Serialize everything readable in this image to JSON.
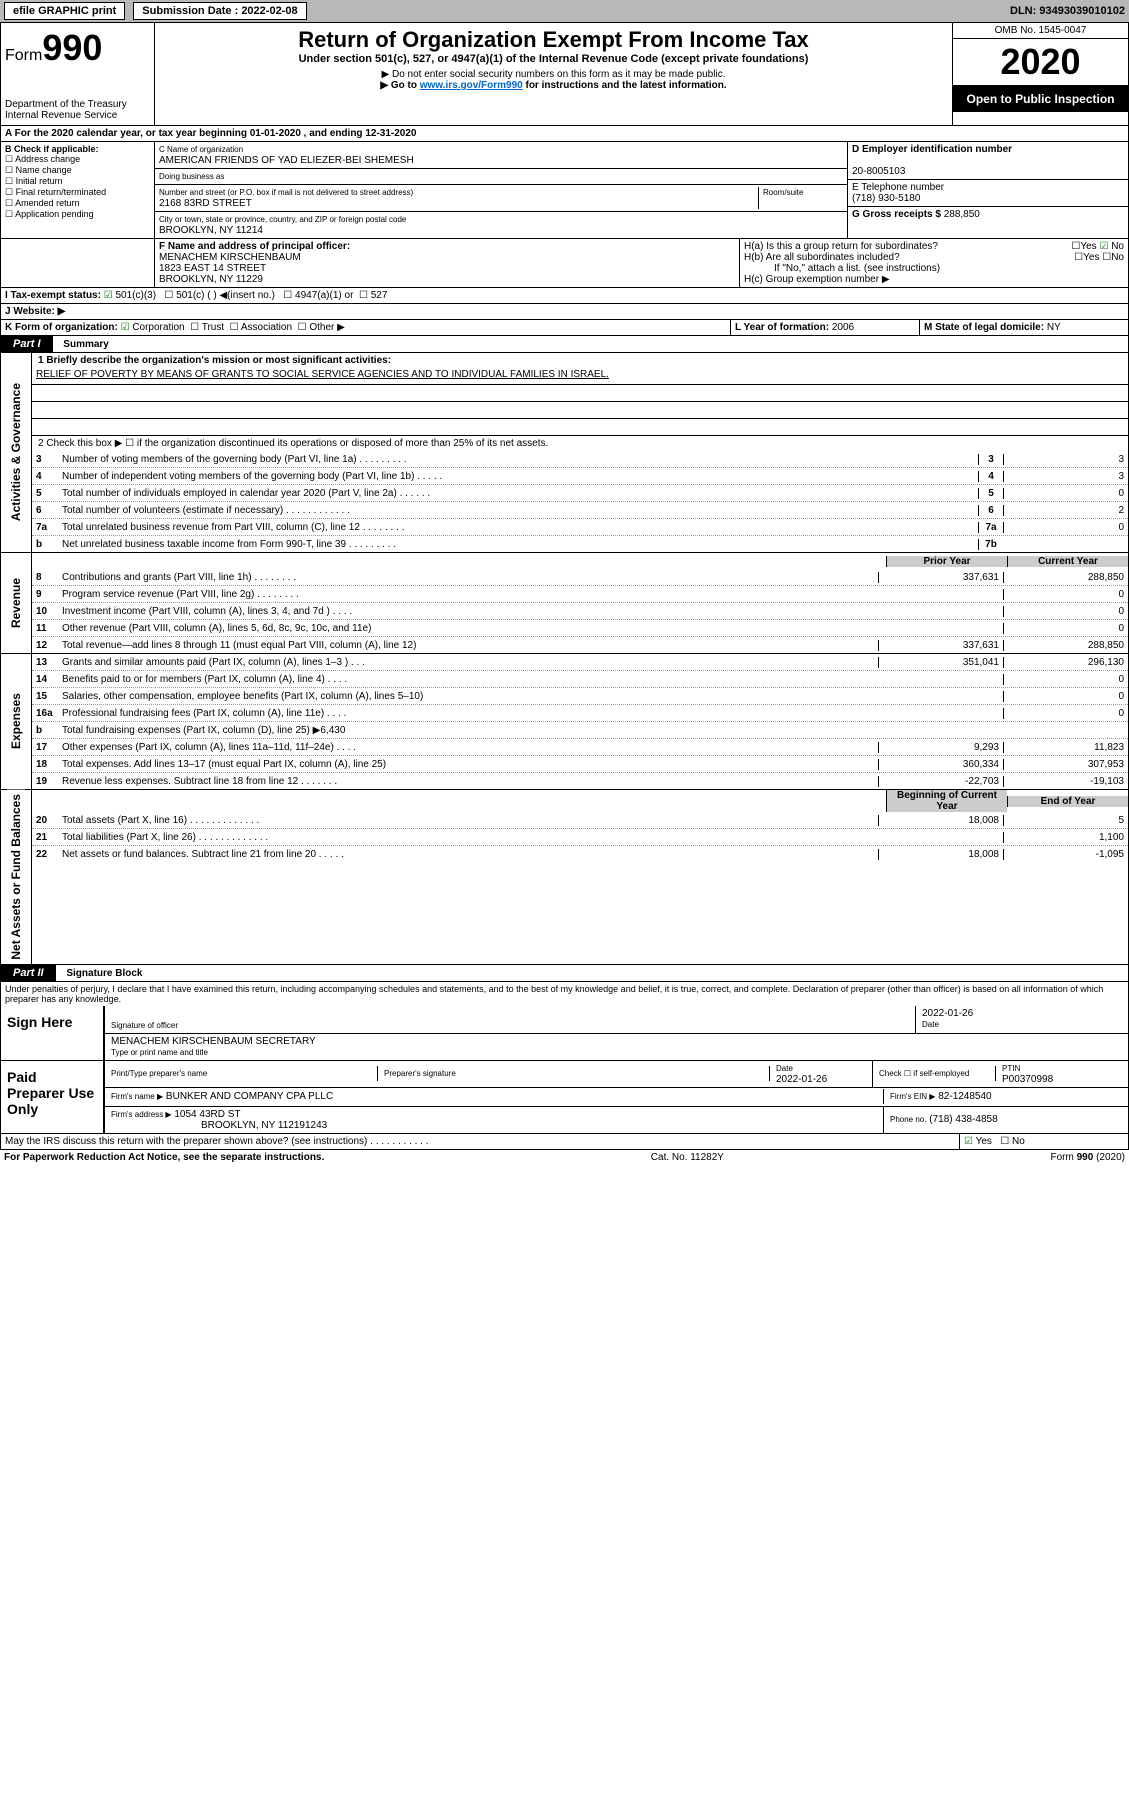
{
  "topbar": {
    "efile": "efile GRAPHIC print",
    "sub_label": "Submission Date : 2022-02-08",
    "dln": "DLN: 93493039010102"
  },
  "header": {
    "form_prefix": "Form",
    "form_num": "990",
    "dept": "Department of the Treasury\nInternal Revenue Service",
    "title": "Return of Organization Exempt From Income Tax",
    "subtitle": "Under section 501(c), 527, or 4947(a)(1) of the Internal Revenue Code (except private foundations)",
    "note1": "▶ Do not enter social security numbers on this form as it may be made public.",
    "note2_pre": "▶ Go to ",
    "note2_link": "www.irs.gov/Form990",
    "note2_post": " for instructions and the latest information.",
    "omb": "OMB No. 1545-0047",
    "year": "2020",
    "open": "Open to Public Inspection"
  },
  "line_a": "A For the 2020 calendar year, or tax year beginning 01-01-2020   , and ending 12-31-2020",
  "b": {
    "label": "B Check if applicable:",
    "items": [
      "Address change",
      "Name change",
      "Initial return",
      "Final return/terminated",
      "Amended return",
      "Application pending"
    ]
  },
  "c": {
    "label": "C Name of organization",
    "name": "AMERICAN FRIENDS OF YAD ELIEZER-BEI SHEMESH",
    "dba_label": "Doing business as",
    "addr_label": "Number and street (or P.O. box if mail is not delivered to street address)",
    "room_label": "Room/suite",
    "addr": "2168 83RD STREET",
    "city_label": "City or town, state or province, country, and ZIP or foreign postal code",
    "city": "BROOKLYN, NY  11214"
  },
  "d": {
    "label": "D Employer identification number",
    "val": "20-8005103"
  },
  "e": {
    "label": "E Telephone number",
    "val": "(718) 930-5180"
  },
  "g": {
    "label": "G Gross receipts $",
    "val": "288,850"
  },
  "f": {
    "label": "F Name and address of principal officer:",
    "name": "MENACHEM KIRSCHENBAUM",
    "addr1": "1823 EAST 14 STREET",
    "addr2": "BROOKLYN, NY  11229"
  },
  "h": {
    "a": "H(a)  Is this a group return for subordinates?",
    "a_yes": "Yes",
    "a_no": "No",
    "b": "H(b)  Are all subordinates included?",
    "b_yes": "Yes",
    "b_no": "No",
    "note": "If \"No,\" attach a list. (see instructions)",
    "c": "H(c)  Group exemption number ▶"
  },
  "i": {
    "label": "I   Tax-exempt status:",
    "o1": "501(c)(3)",
    "o2": "501(c) (  ) ◀(insert no.)",
    "o3": "4947(a)(1) or",
    "o4": "527"
  },
  "j": {
    "label": "J   Website: ▶"
  },
  "k": {
    "label": "K Form of organization:",
    "o1": "Corporation",
    "o2": "Trust",
    "o3": "Association",
    "o4": "Other ▶"
  },
  "l": {
    "label": "L Year of formation:",
    "val": "2006"
  },
  "m": {
    "label": "M State of legal domicile:",
    "val": "NY"
  },
  "part1": {
    "bar": "Part I",
    "title": "Summary",
    "q1": "1  Briefly describe the organization's mission or most significant activities:",
    "mission": "RELIEF OF POVERTY BY MEANS OF GRANTS TO SOCIAL SERVICE AGENCIES AND TO INDIVIDUAL FAMILIES IN ISRAEL.",
    "q2": "2   Check this box ▶ ☐  if the organization discontinued its operations or disposed of more than 25% of its net assets.",
    "vlab_ag": "Activities & Governance",
    "vlab_rev": "Revenue",
    "vlab_exp": "Expenses",
    "vlab_net": "Net Assets or Fund Balances",
    "header_prior": "Prior Year",
    "header_curr": "Current Year",
    "header_boy": "Beginning of Current Year",
    "header_eoy": "End of Year"
  },
  "lines_gov": [
    {
      "n": "3",
      "d": "Number of voting members of the governing body (Part VI, line 1a)   .    .    .    .    .    .    .    .    .",
      "b": "3",
      "v": "3"
    },
    {
      "n": "4",
      "d": "Number of independent voting members of the governing body (Part VI, line 1b)  .    .    .    .    .",
      "b": "4",
      "v": "3"
    },
    {
      "n": "5",
      "d": "Total number of individuals employed in calendar year 2020 (Part V, line 2a)  .    .    .    .    .    .",
      "b": "5",
      "v": "0"
    },
    {
      "n": "6",
      "d": "Total number of volunteers (estimate if necessary)   .    .    .    .    .    .    .    .    .    .    .    .",
      "b": "6",
      "v": "2"
    },
    {
      "n": "7a",
      "d": "Total unrelated business revenue from Part VIII, column (C), line 12  .    .    .    .    .    .    .    .",
      "b": "7a",
      "v": "0"
    },
    {
      "n": "b",
      "d": "Net unrelated business taxable income from Form 990-T, line 39   .    .    .    .    .    .    .    .    .",
      "b": "7b",
      "v": ""
    }
  ],
  "lines_rev": [
    {
      "n": "8",
      "d": "Contributions and grants (Part VIII, line 1h)   .    .    .    .    .    .    .    .",
      "p": "337,631",
      "c": "288,850"
    },
    {
      "n": "9",
      "d": "Program service revenue (Part VIII, line 2g)  .    .    .    .    .    .    .    .",
      "p": "",
      "c": "0"
    },
    {
      "n": "10",
      "d": "Investment income (Part VIII, column (A), lines 3, 4, and 7d )  .    .    .    .",
      "p": "",
      "c": "0"
    },
    {
      "n": "11",
      "d": "Other revenue (Part VIII, column (A), lines 5, 6d, 8c, 9c, 10c, and 11e)",
      "p": "",
      "c": "0"
    },
    {
      "n": "12",
      "d": "Total revenue—add lines 8 through 11 (must equal Part VIII, column (A), line 12)",
      "p": "337,631",
      "c": "288,850"
    }
  ],
  "lines_exp": [
    {
      "n": "13",
      "d": "Grants and similar amounts paid (Part IX, column (A), lines 1–3 )  .    .    .",
      "p": "351,041",
      "c": "296,130"
    },
    {
      "n": "14",
      "d": "Benefits paid to or for members (Part IX, column (A), line 4)  .    .    .    .",
      "p": "",
      "c": "0"
    },
    {
      "n": "15",
      "d": "Salaries, other compensation, employee benefits (Part IX, column (A), lines 5–10)",
      "p": "",
      "c": "0"
    },
    {
      "n": "16a",
      "d": "Professional fundraising fees (Part IX, column (A), line 11e)  .    .    .    .",
      "p": "",
      "c": "0"
    },
    {
      "n": "b",
      "d": "Total fundraising expenses (Part IX, column (D), line 25) ▶6,430",
      "p": "—",
      "c": "—"
    },
    {
      "n": "17",
      "d": "Other expenses (Part IX, column (A), lines 11a–11d, 11f–24e)  .    .    .    .",
      "p": "9,293",
      "c": "11,823"
    },
    {
      "n": "18",
      "d": "Total expenses. Add lines 13–17 (must equal Part IX, column (A), line 25)",
      "p": "360,334",
      "c": "307,953"
    },
    {
      "n": "19",
      "d": "Revenue less expenses. Subtract line 18 from line 12  .    .    .    .    .    .    .",
      "p": "-22,703",
      "c": "-19,103"
    }
  ],
  "lines_net": [
    {
      "n": "20",
      "d": "Total assets (Part X, line 16)   .    .    .    .    .    .    .    .    .    .    .    .    .",
      "p": "18,008",
      "c": "5"
    },
    {
      "n": "21",
      "d": "Total liabilities (Part X, line 26)  .    .    .    .    .    .    .    .    .    .    .    .    .",
      "p": "",
      "c": "1,100"
    },
    {
      "n": "22",
      "d": "Net assets or fund balances. Subtract line 21 from line 20  .    .    .    .    .",
      "p": "18,008",
      "c": "-1,095"
    }
  ],
  "part2": {
    "bar": "Part II",
    "title": "Signature Block"
  },
  "penalties": "Under penalties of perjury, I declare that I have examined this return, including accompanying schedules and statements, and to the best of my knowledge and belief, it is true, correct, and complete. Declaration of preparer (other than officer) is based on all information of which preparer has any knowledge.",
  "sign": {
    "label": "Sign Here",
    "sig_label": "Signature of officer",
    "date": "2022-01-26",
    "date_label": "Date",
    "name": "MENACHEM KIRSCHENBAUM  SECRETARY",
    "name_label": "Type or print name and title"
  },
  "paid": {
    "label": "Paid Preparer Use Only",
    "h1": "Print/Type preparer's name",
    "h2": "Preparer's signature",
    "h3": "Date",
    "h3v": "2022-01-26",
    "h4": "Check ☐ if self-employed",
    "h5": "PTIN",
    "h5v": "P00370998",
    "firm_name_l": "Firm's name   ▶",
    "firm_name": "BUNKER AND COMPANY CPA PLLC",
    "firm_ein_l": "Firm's EIN ▶",
    "firm_ein": "82-1248540",
    "firm_addr_l": "Firm's address ▶",
    "firm_addr1": "1054 43RD ST",
    "firm_addr2": "BROOKLYN, NY  112191243",
    "phone_l": "Phone no.",
    "phone": "(718) 438-4858"
  },
  "discuss": {
    "q": "May the IRS discuss this return with the preparer shown above? (see instructions)   .    .    .    .    .    .    .    .    .    .    .",
    "yes": "Yes",
    "no": "No"
  },
  "footer": {
    "left": "For Paperwork Reduction Act Notice, see the separate instructions.",
    "mid": "Cat. No. 11282Y",
    "right": "Form 990 (2020)"
  }
}
